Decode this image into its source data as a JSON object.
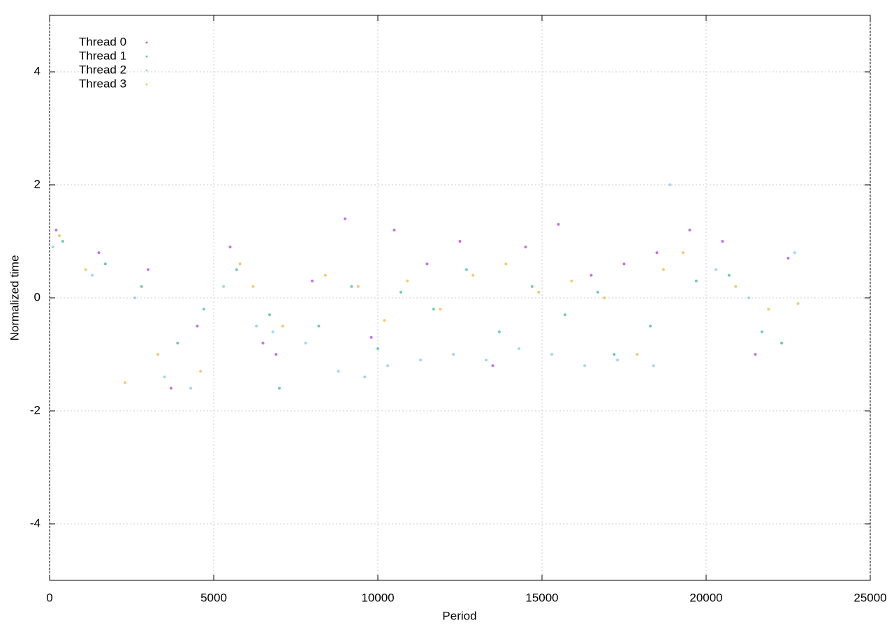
{
  "chart_data": {
    "type": "scatter",
    "xlabel": "Period",
    "ylabel": "Normalized time",
    "xlim": [
      0,
      25000
    ],
    "ylim": [
      -5,
      5
    ],
    "xticks": [
      0,
      5000,
      10000,
      15000,
      20000,
      25000
    ],
    "yticks": [
      -4,
      -2,
      0,
      2,
      4
    ],
    "grid": true,
    "legend": "upper left",
    "series": [
      {
        "name": "Thread 0",
        "color": "#9400d3",
        "x": [
          200,
          1500,
          3000,
          3700,
          4500,
          5500,
          6500,
          6900,
          8000,
          9000,
          9800,
          10500,
          11500,
          12500,
          13500,
          14500,
          15500,
          16500,
          17500,
          18500,
          19500,
          20500,
          21500,
          22500
        ],
        "values": [
          1.2,
          0.8,
          0.5,
          -1.6,
          -0.5,
          0.9,
          -0.8,
          -1.0,
          0.3,
          1.4,
          -0.7,
          1.2,
          0.6,
          1.0,
          -1.2,
          0.9,
          1.3,
          0.4,
          0.6,
          0.8,
          1.2,
          1.0,
          -1.0,
          0.7
        ]
      },
      {
        "name": "Thread 1",
        "color": "#009e73",
        "x": [
          400,
          1700,
          2800,
          3900,
          4700,
          5700,
          6700,
          7000,
          8200,
          9200,
          10000,
          10700,
          11700,
          12700,
          13700,
          14700,
          15700,
          16700,
          17200,
          18300,
          19700,
          20700,
          21700,
          22300
        ],
        "values": [
          1.0,
          0.6,
          0.2,
          -0.8,
          -0.2,
          0.5,
          -0.3,
          -1.6,
          -0.5,
          0.2,
          -0.9,
          0.1,
          -0.2,
          0.5,
          -0.6,
          0.2,
          -0.3,
          0.1,
          -1.0,
          -0.5,
          0.3,
          0.4,
          -0.6,
          -0.8
        ]
      },
      {
        "name": "Thread 2",
        "color": "#56b4e9",
        "x": [
          100,
          1300,
          2600,
          3500,
          4300,
          5300,
          6300,
          6800,
          7800,
          8800,
          9600,
          10300,
          11300,
          12300,
          13300,
          14300,
          15300,
          16300,
          17300,
          18400,
          18900,
          20300,
          21300,
          22700
        ],
        "values": [
          0.9,
          0.4,
          0.0,
          -1.4,
          -1.6,
          0.2,
          -0.5,
          -0.6,
          -0.8,
          -1.3,
          -1.4,
          -1.2,
          -1.1,
          -1.0,
          -1.1,
          -0.9,
          -1.0,
          -1.2,
          -1.1,
          -1.2,
          2.0,
          0.5,
          0.0,
          0.8
        ]
      },
      {
        "name": "Thread 3",
        "color": "#e69f00",
        "x": [
          300,
          1100,
          2300,
          3300,
          4600,
          5800,
          6200,
          7100,
          8400,
          9400,
          10200,
          10900,
          11900,
          12900,
          13900,
          14900,
          15900,
          16900,
          17900,
          18700,
          19300,
          20900,
          21900,
          22800
        ],
        "values": [
          1.1,
          0.5,
          -1.5,
          -1.0,
          -1.3,
          0.6,
          0.2,
          -0.5,
          0.4,
          0.2,
          -0.4,
          0.3,
          -0.2,
          0.4,
          0.6,
          0.1,
          0.3,
          0.0,
          -1.0,
          0.5,
          0.8,
          0.2,
          -0.2,
          -0.1
        ]
      }
    ]
  }
}
